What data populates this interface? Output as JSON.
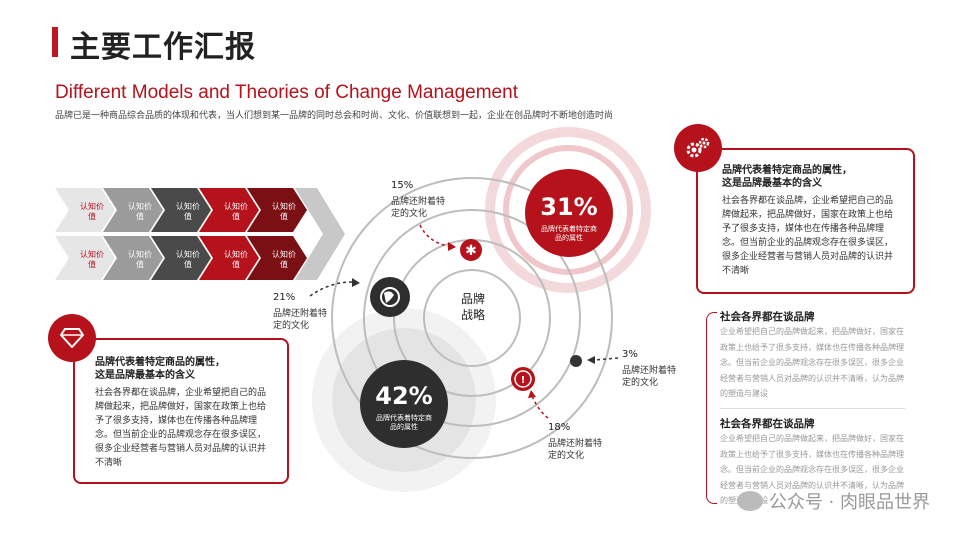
{
  "header": {
    "title": "主要工作汇报",
    "en_title": "Different Models and Theories of Change Management",
    "subtitle": "品牌已是一种商品综合品质的体现和代表，当人们想到某一品牌的同时总会和时尚、文化、价值联想到一起，企业在创品牌时不断地创造时尚"
  },
  "arrows": {
    "label": "认知价值",
    "row_colors": [
      "#e6e6e6",
      "#9b9b9b",
      "#4a4a4a",
      "#b5121b",
      "#7a0f14"
    ]
  },
  "diagram": {
    "center_label": "品牌\n战略",
    "big_pct_top": "31%",
    "big_pct_top_sub": "品牌代表着特定商品的属性",
    "big_pct_bottom": "42%",
    "big_pct_bottom_sub": "品牌代表着特定商品的属性",
    "p15": "15%",
    "p15_note": "品牌还附着特定的文化",
    "p21": "21%",
    "p21_note": "品牌还附着特定的文化",
    "p3": "3%",
    "p3_note": "品牌还附着特定的文化",
    "p18": "18%",
    "p18_note": "品牌还附着特定的文化",
    "icons": [
      "asterisk-icon",
      "globe-icon",
      "exclamation-icon"
    ]
  },
  "left_box": {
    "heading": "品牌代表着特定商品的属性，\n这是品牌最基本的含义",
    "body": "社会各界都在谈品牌，企业希望把自己的品牌做起来，把品牌做好，国家在政策上也给予了很多支持，媒体也在传播各种品牌理念。但当前企业的品牌观念存在很多误区，很多企业经营者与营销人员对品牌的认识并不清晰",
    "icon": "diamond-icon",
    "accent": "#b5121b"
  },
  "right_box": {
    "heading": "品牌代表着特定商品的属性，\n这是品牌最基本的含义",
    "body": "社会各界都在谈品牌，企业希望把自己的品牌做起来，把品牌做好，国家在政策上也给予了很多支持，媒体也在传播各种品牌理念。但当前企业的品牌观念存在很多误区，很多企业经营者与营销人员对品牌的认识并不清晰",
    "icon": "gears-icon"
  },
  "right_texts": [
    {
      "heading": "社会各界都在谈品牌",
      "body": "企业希望把自己的品牌做起来，把品牌做好，国家在政策上也给予了很多支持，媒体也在传播各种品牌理念。但当前企业的品牌观念存在很多误区，很多企业经营者与营销人员对品牌的认识并不清晰，认为品牌的塑造与建设"
    },
    {
      "heading": "社会各界都在谈品牌",
      "body": "企业希望把自己的品牌做起来，把品牌做好，国家在政策上也给予了很多支持，媒体也在传播各种品牌理念。但当前企业的品牌观念存在很多误区，很多企业经营者与营销人员对品牌的认识并不清晰，认为品牌的塑造与建设"
    }
  ],
  "watermark": "公众号 · 肉眼品世界"
}
